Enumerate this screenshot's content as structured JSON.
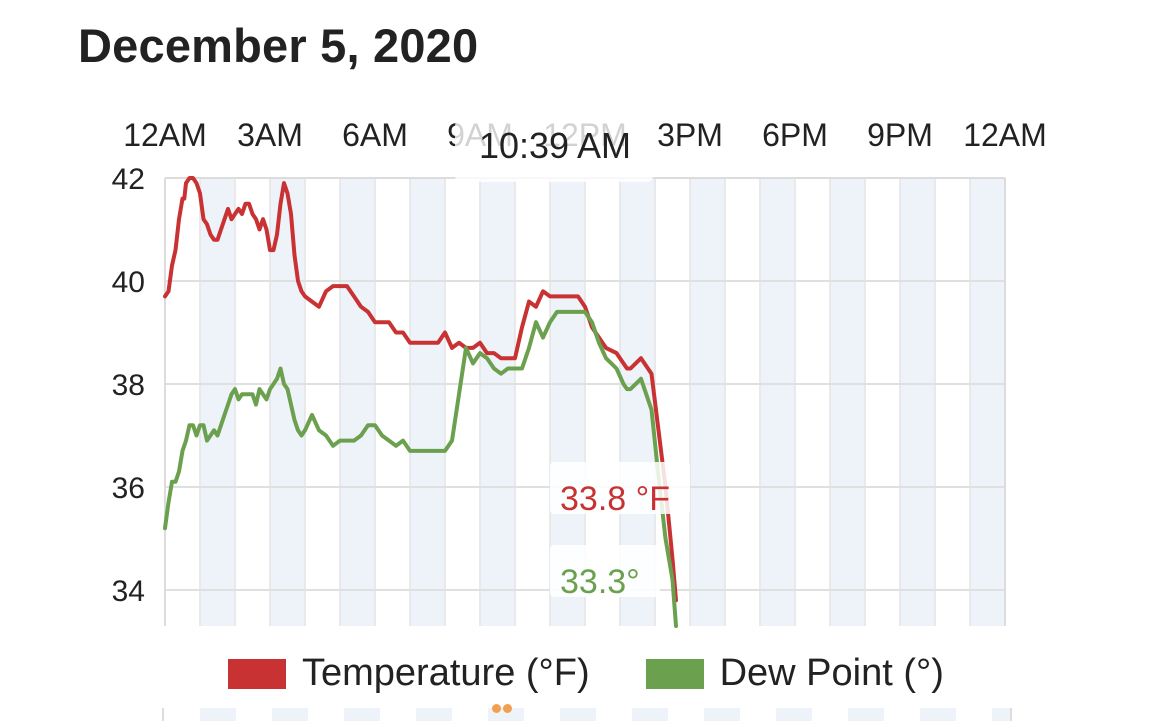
{
  "header": {
    "date": "December 5, 2020"
  },
  "tooltip": {
    "time": "10:39 AM"
  },
  "chart_data": {
    "type": "line",
    "x_unit": "hour of day",
    "xlim": [
      0,
      24
    ],
    "ylim": [
      33.3,
      42
    ],
    "x_tick_labels": [
      "12AM",
      "3AM",
      "6AM",
      "9AM",
      "12PM",
      "3PM",
      "6PM",
      "9PM",
      "12AM"
    ],
    "y_ticks": [
      34,
      36,
      38,
      40,
      42
    ],
    "grid": true,
    "legend_position": "bottom-center",
    "series": [
      {
        "name": "Temperature (°F)",
        "color": "#c83232",
        "end_label": "33.8 °F",
        "x": [
          0.0,
          0.1,
          0.2,
          0.3,
          0.4,
          0.5,
          0.55,
          0.6,
          0.7,
          0.8,
          0.9,
          1.0,
          1.1,
          1.2,
          1.3,
          1.4,
          1.5,
          1.6,
          1.7,
          1.8,
          1.9,
          2.0,
          2.1,
          2.2,
          2.3,
          2.4,
          2.5,
          2.6,
          2.7,
          2.8,
          2.9,
          3.0,
          3.1,
          3.2,
          3.3,
          3.4,
          3.5,
          3.6,
          3.7,
          3.8,
          3.9,
          4.0,
          4.2,
          4.4,
          4.6,
          4.8,
          5.0,
          5.2,
          5.4,
          5.6,
          5.8,
          6.0,
          6.2,
          6.4,
          6.6,
          6.8,
          7.0,
          7.2,
          7.4,
          7.6,
          7.8,
          8.0,
          8.2,
          8.4,
          8.6,
          8.8,
          9.0,
          9.2,
          9.4,
          9.6,
          9.8,
          10.0,
          10.2,
          10.4,
          10.6,
          10.8,
          11.0,
          11.2,
          11.4,
          11.6,
          11.8,
          12.0,
          12.2,
          12.4,
          12.6,
          12.9,
          13.1,
          13.2,
          13.3,
          13.6,
          13.9,
          14.1,
          14.3,
          14.5,
          14.6
        ],
        "y": [
          39.7,
          39.8,
          40.3,
          40.6,
          41.2,
          41.6,
          41.6,
          41.9,
          42.0,
          42.0,
          41.9,
          41.7,
          41.2,
          41.1,
          40.9,
          40.8,
          40.8,
          41.0,
          41.2,
          41.4,
          41.2,
          41.3,
          41.4,
          41.3,
          41.5,
          41.5,
          41.3,
          41.2,
          41.0,
          41.2,
          41.0,
          40.6,
          40.6,
          40.9,
          41.5,
          41.9,
          41.7,
          41.3,
          40.5,
          40.0,
          39.8,
          39.7,
          39.6,
          39.5,
          39.8,
          39.9,
          39.9,
          39.9,
          39.7,
          39.5,
          39.4,
          39.2,
          39.2,
          39.2,
          39.0,
          39.0,
          38.8,
          38.8,
          38.8,
          38.8,
          38.8,
          39.0,
          38.7,
          38.8,
          38.7,
          38.7,
          38.8,
          38.6,
          38.6,
          38.5,
          38.5,
          38.5,
          39.1,
          39.6,
          39.5,
          39.8,
          39.7,
          39.7,
          39.7,
          39.7,
          39.7,
          39.5,
          39.1,
          38.9,
          38.7,
          38.6,
          38.4,
          38.3,
          38.3,
          38.5,
          38.2,
          37.1,
          36.0,
          34.6,
          33.8
        ]
      },
      {
        "name": "Dew Point (°)",
        "color": "#6aa04e",
        "end_label": "33.3°",
        "x": [
          0.0,
          0.1,
          0.2,
          0.3,
          0.4,
          0.5,
          0.6,
          0.7,
          0.8,
          0.9,
          1.0,
          1.1,
          1.2,
          1.3,
          1.4,
          1.5,
          1.6,
          1.7,
          1.8,
          1.9,
          2.0,
          2.1,
          2.2,
          2.3,
          2.4,
          2.5,
          2.6,
          2.7,
          2.8,
          2.9,
          3.0,
          3.1,
          3.2,
          3.3,
          3.4,
          3.5,
          3.6,
          3.7,
          3.8,
          3.9,
          4.0,
          4.2,
          4.4,
          4.6,
          4.8,
          5.0,
          5.2,
          5.4,
          5.6,
          5.8,
          6.0,
          6.2,
          6.4,
          6.6,
          6.8,
          7.0,
          7.2,
          7.4,
          7.6,
          7.8,
          8.0,
          8.2,
          8.4,
          8.6,
          8.8,
          9.0,
          9.2,
          9.4,
          9.6,
          9.8,
          10.0,
          10.2,
          10.4,
          10.6,
          10.8,
          11.0,
          11.2,
          11.4,
          11.6,
          11.8,
          12.0,
          12.2,
          12.4,
          12.6,
          12.9,
          13.1,
          13.2,
          13.3,
          13.6,
          13.9,
          14.1,
          14.3,
          14.5,
          14.6
        ],
        "y": [
          35.2,
          35.7,
          36.1,
          36.1,
          36.3,
          36.7,
          36.9,
          37.2,
          37.2,
          37.0,
          37.2,
          37.2,
          36.9,
          37.0,
          37.1,
          37.0,
          37.2,
          37.4,
          37.6,
          37.8,
          37.9,
          37.7,
          37.8,
          37.8,
          37.8,
          37.8,
          37.6,
          37.9,
          37.8,
          37.7,
          37.9,
          38.0,
          38.1,
          38.3,
          38.0,
          37.9,
          37.6,
          37.3,
          37.1,
          37.0,
          37.1,
          37.4,
          37.1,
          37.0,
          36.8,
          36.9,
          36.9,
          36.9,
          37.0,
          37.2,
          37.2,
          37.0,
          36.9,
          36.8,
          36.9,
          36.7,
          36.7,
          36.7,
          36.7,
          36.7,
          36.7,
          36.9,
          37.8,
          38.7,
          38.4,
          38.6,
          38.5,
          38.3,
          38.2,
          38.3,
          38.3,
          38.3,
          38.7,
          39.2,
          38.9,
          39.2,
          39.4,
          39.4,
          39.4,
          39.4,
          39.4,
          39.2,
          38.8,
          38.5,
          38.3,
          38.0,
          37.9,
          37.9,
          38.1,
          37.5,
          36.2,
          35.0,
          34.2,
          33.3
        ]
      }
    ]
  }
}
